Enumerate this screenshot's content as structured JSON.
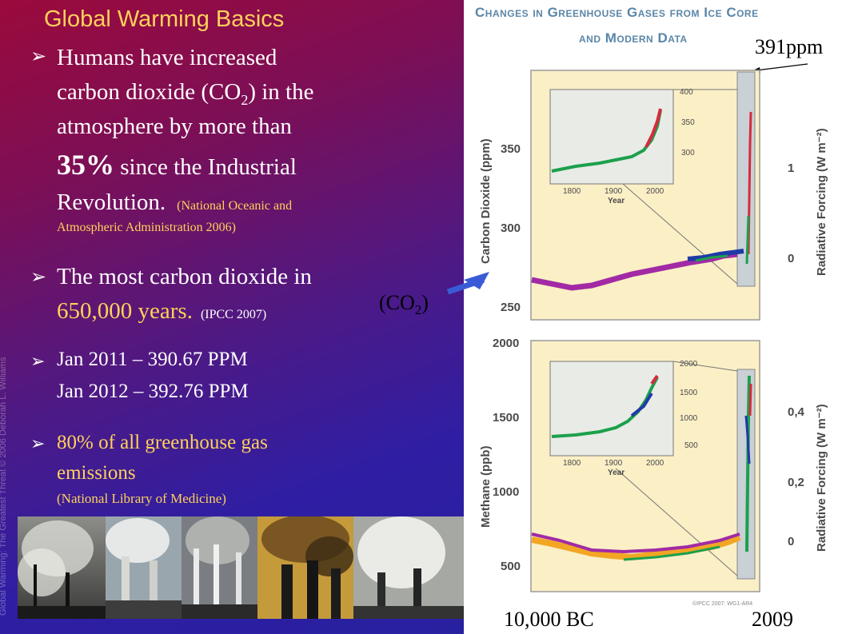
{
  "slide": {
    "title": "Global Warming Basics",
    "side_credit": "Global Warming: The Greatest Threat © 2006 Deborah L. Williams",
    "bullet1": {
      "line1": "Humans have increased",
      "line2_a": "carbon dioxide (CO",
      "line2_sub": "2",
      "line2_b": ") in the",
      "line3": "atmosphere by more than",
      "line4_big": "35%",
      "line4_rest": " since the Industrial",
      "line5": "Revolution.",
      "line5_cite": "(National Oceanic and",
      "line6_cite": "Atmospheric Administration 2006)"
    },
    "bullet2": {
      "line1": "The most carbon dioxide in",
      "line2": "650,000 years",
      "line2_dot": ".",
      "cite": "(IPCC 2007)"
    },
    "bullet3": {
      "line1": "Jan 2011 – 390.67 PPM",
      "line2": "Jan 2012 – 392.76 PPM"
    },
    "bullet4": {
      "line1": "80% of all greenhouse  gas",
      "line2": "emissions",
      "cite": "(National Library of Medicine)"
    }
  },
  "figure": {
    "title_line1": "Changes in Greenhouse Gases from Ice Core",
    "title_line2": "and Modern Data",
    "co2_label_a": "(CO",
    "co2_label_sub": "2",
    "co2_label_b": ")",
    "ppm_label": "391ppm",
    "x_start": "10,000 BC",
    "x_end": "2009",
    "top": {
      "ylabel": "Carbon Dioxide (ppm)",
      "rlabel": "Radiative Forcing (W m⁻²)",
      "yticks": [
        "250",
        "300",
        "350"
      ],
      "rticks": [
        "0",
        "1"
      ],
      "inset_yticks": [
        "300",
        "350",
        "400"
      ],
      "inset_xticks": [
        "1800",
        "1900",
        "2000"
      ],
      "inset_xlabel": "Year"
    },
    "bottom": {
      "ylabel": "Methane (ppb)",
      "rlabel": "Radiative Forcing (W m⁻²)",
      "yticks": [
        "500",
        "1000",
        "1500",
        "2000"
      ],
      "rticks": [
        "0",
        "0,2",
        "0,4"
      ],
      "inset_yticks": [
        "500",
        "1000",
        "1500",
        "2000"
      ],
      "inset_xticks": [
        "1800",
        "1900",
        "2000"
      ],
      "inset_xlabel": "Year"
    },
    "credit": "©IPCC 2007: WG1-AR4"
  },
  "colors": {
    "slide_title": "#ffd15a",
    "plot_bg": "#fbefc6",
    "axis_text": "#4a4a4a"
  }
}
